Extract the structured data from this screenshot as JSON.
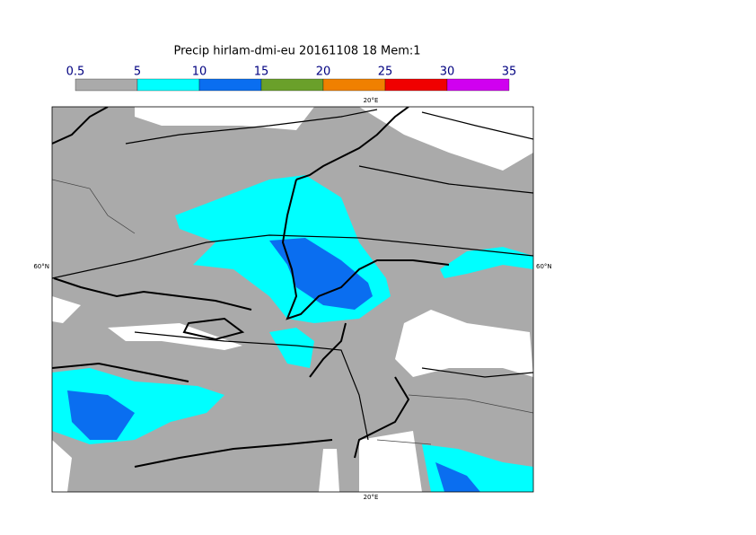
{
  "title": "Precip hirlam-dmi-eu 20161108 18 Mem:1",
  "colorbar": {
    "ticks": [
      0.5,
      5,
      10,
      15,
      20,
      25,
      30,
      35
    ],
    "colors": [
      "#aaaaaa",
      "#00ffff",
      "#0a6ef0",
      "#6aa02a",
      "#f08000",
      "#f00000",
      "#d000f0"
    ]
  },
  "map": {
    "labels": {
      "top": "20°E",
      "bottom": "20°E",
      "left": "60°N",
      "right": "60°N"
    }
  }
}
